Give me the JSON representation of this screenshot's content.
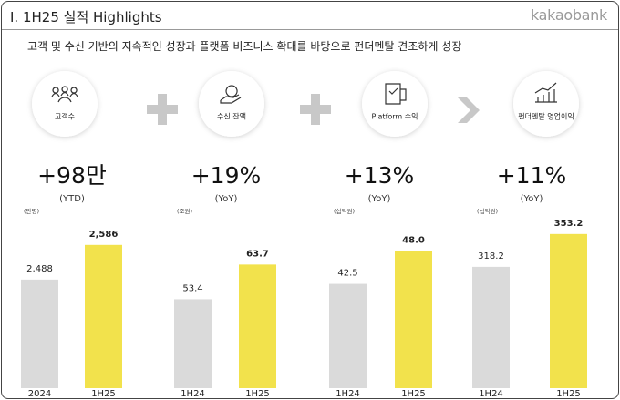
{
  "header": {
    "title": "I. 1H25 실적 Highlights",
    "brand": "kakaobank",
    "subtitle": "고객 및 수신 기반의 지속적인 성장과 플랫폼 비즈니스 확대를 바탕으로 펀더멘탈 견조하게 성장"
  },
  "chart_data": [
    {
      "type": "bar",
      "icon_label": "고객수",
      "headline": "+98만",
      "headline_note": "(YTD)",
      "unit": "(만명)",
      "categories": [
        "2024",
        "1H25"
      ],
      "values": [
        2488,
        2586
      ],
      "value_labels": [
        "2,488",
        "2,586"
      ],
      "colors": [
        "#dadada",
        "#f2e24c"
      ],
      "ylim": [
        2181,
        2619
      ]
    },
    {
      "type": "bar",
      "icon_label": "수신 잔액",
      "headline": "+19%",
      "headline_note": "(YoY)",
      "unit": "(조원)",
      "categories": [
        "1H24",
        "1H25"
      ],
      "values": [
        53.4,
        63.7
      ],
      "colors": [
        "#dadada",
        "#f2e24c"
      ],
      "ylim": [
        27,
        73
      ]
    },
    {
      "type": "bar",
      "icon_label": "Platform 수익",
      "headline": "+13%",
      "headline_note": "(YoY)",
      "unit": "(십억원)",
      "categories": [
        "1H24",
        "1H25"
      ],
      "values": [
        42.5,
        48.0
      ],
      "value_labels": [
        "42.5",
        "48.0"
      ],
      "colors": [
        "#dadada",
        "#f2e24c"
      ],
      "ylim": [
        25,
        51
      ]
    },
    {
      "type": "bar",
      "icon_label": "펀더멘탈 영업이익",
      "headline": "+11%",
      "headline_note": "(YoY)",
      "unit": "(십억원)",
      "categories": [
        "1H24",
        "1H25"
      ],
      "values": [
        318.2,
        353.2
      ],
      "colors": [
        "#dadada",
        "#f2e24c"
      ],
      "ylim": [
        189,
        354
      ]
    }
  ]
}
